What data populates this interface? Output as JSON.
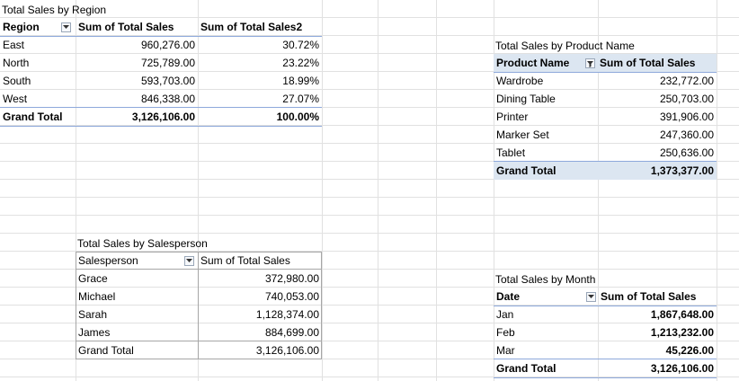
{
  "region": {
    "title": "Total Sales by  Region",
    "headers": [
      "Region",
      "Sum of Total Sales",
      "Sum of Total Sales2"
    ],
    "rows": [
      [
        "East",
        "960,276.00",
        "30.72%"
      ],
      [
        "North",
        "725,789.00",
        "23.22%"
      ],
      [
        "South",
        "593,703.00",
        "18.99%"
      ],
      [
        "West",
        "846,338.00",
        "27.07%"
      ]
    ],
    "total": [
      "Grand Total",
      "3,126,106.00",
      "100.00%"
    ]
  },
  "product": {
    "title": "Total Sales by Product Name",
    "headers": [
      "Product Name",
      "Sum of Total Sales"
    ],
    "rows": [
      [
        "Wardrobe",
        "232,772.00"
      ],
      [
        "Dining Table",
        "250,703.00"
      ],
      [
        "Printer",
        "391,906.00"
      ],
      [
        "Marker Set",
        "247,360.00"
      ],
      [
        "Tablet",
        "250,636.00"
      ]
    ],
    "total": [
      "Grand Total",
      "1,373,377.00"
    ]
  },
  "salesperson": {
    "title": "Total Sales by Salesperson",
    "headers": [
      "Salesperson",
      "Sum of Total Sales"
    ],
    "rows": [
      [
        "Grace",
        "372,980.00"
      ],
      [
        "Michael",
        "740,053.00"
      ],
      [
        "Sarah",
        "1,128,374.00"
      ],
      [
        "James",
        "884,699.00"
      ]
    ],
    "total": [
      "Grand Total",
      "3,126,106.00"
    ]
  },
  "month": {
    "title": "Total Sales by Month",
    "headers": [
      "Date",
      "Sum of Total Sales"
    ],
    "rows": [
      [
        "Jan",
        "1,867,648.00"
      ],
      [
        "Feb",
        "1,213,232.00"
      ],
      [
        "Mar",
        "45,226.00"
      ]
    ],
    "total": [
      "Grand Total",
      "3,126,106.00"
    ]
  },
  "colors": {
    "accent_border": "#8ea9db",
    "header_fill": "#dce6f1",
    "gridline": "#e1e1e1"
  }
}
